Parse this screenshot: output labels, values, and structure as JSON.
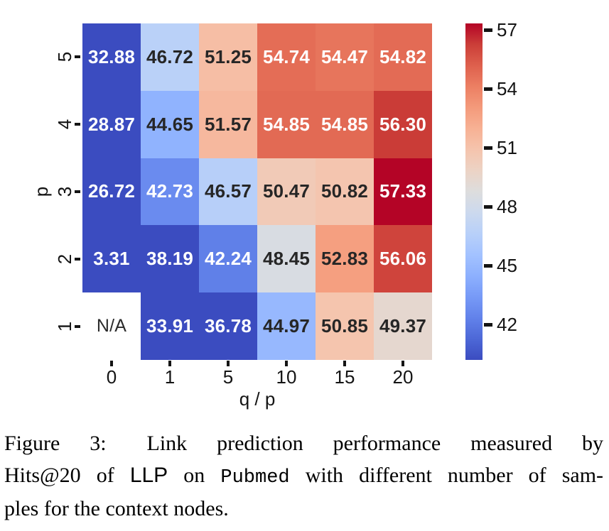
{
  "chart_data": {
    "type": "heatmap",
    "xlabel": "q / p",
    "ylabel": "p",
    "x_categories": [
      "0",
      "1",
      "5",
      "10",
      "15",
      "20"
    ],
    "y_categories": [
      "5",
      "4",
      "3",
      "2",
      "1"
    ],
    "rows": [
      {
        "y": "5",
        "values": [
          "32.88",
          "46.72",
          "51.25",
          "54.74",
          "54.47",
          "54.82"
        ]
      },
      {
        "y": "4",
        "values": [
          "28.87",
          "44.65",
          "51.57",
          "54.85",
          "54.85",
          "56.30"
        ]
      },
      {
        "y": "3",
        "values": [
          "26.72",
          "42.73",
          "46.57",
          "50.47",
          "50.82",
          "57.33"
        ]
      },
      {
        "y": "2",
        "values": [
          "3.31",
          "38.19",
          "42.24",
          "48.45",
          "52.83",
          "56.06"
        ]
      },
      {
        "y": "1",
        "values": [
          null,
          "33.91",
          "36.78",
          "44.97",
          "50.85",
          "49.37"
        ]
      }
    ],
    "na_label": "N/A",
    "grid": false,
    "colorscale": {
      "name": "coolwarm",
      "vmin": 40.2,
      "vmax": 57.33,
      "anchors": [
        [
          0.0,
          "#3B4CC0"
        ],
        [
          0.0625,
          "#4D68D7"
        ],
        [
          0.125,
          "#6282EA"
        ],
        [
          0.1875,
          "#779AF7"
        ],
        [
          0.25,
          "#8DB0FE"
        ],
        [
          0.3125,
          "#A3C2FF"
        ],
        [
          0.375,
          "#B8D0F9"
        ],
        [
          0.4375,
          "#CCD9EE"
        ],
        [
          0.5,
          "#DDDDDD"
        ],
        [
          0.5625,
          "#ECD3C5"
        ],
        [
          0.625,
          "#F5C4AD"
        ],
        [
          0.6875,
          "#F7B194"
        ],
        [
          0.75,
          "#F49A7B"
        ],
        [
          0.8125,
          "#EC7F63"
        ],
        [
          0.875,
          "#DE604D"
        ],
        [
          0.9375,
          "#CB3E38"
        ],
        [
          1.0,
          "#B40426"
        ]
      ]
    },
    "colorbar_ticks": [
      "57",
      "54",
      "51",
      "48",
      "45",
      "42"
    ]
  },
  "colors": {
    "background": "#FFFFFF",
    "cell_text_light": "#FFFFFF",
    "cell_text_dark": "#262626",
    "tick_text": "#141414",
    "na_bg": "#FFFFFF",
    "na_text": "#2B2B2B"
  },
  "caption": {
    "label": "Figure 3:",
    "lines": [
      [
        {
          "text": "Figure 3: ",
          "font": "serif"
        },
        {
          "text": "Link prediction performance measured by",
          "font": "serif"
        }
      ],
      [
        {
          "text": "Hits@20 of",
          "font": "serif"
        },
        {
          "text": "LLP",
          "font": "sans"
        },
        {
          "text": "on",
          "font": "serif"
        },
        {
          "text": "Pubmed",
          "font": "mono"
        },
        {
          "text": "with different number of sam-",
          "font": "serif"
        }
      ],
      [
        {
          "text": "ples for the context nodes.",
          "font": "serif"
        }
      ]
    ]
  }
}
